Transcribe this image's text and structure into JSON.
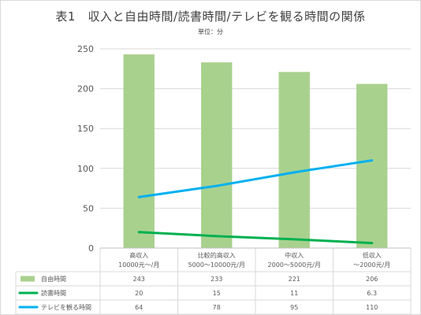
{
  "chart_data": {
    "type": "bar",
    "title": "表1　収入と自由時間/読書時間/テレビを観る時間の関係",
    "subtitle": "単位：分",
    "ylim": [
      0,
      250
    ],
    "yticks": [
      0,
      50,
      100,
      150,
      200,
      250
    ],
    "grid": true,
    "legend": "table-bottom",
    "categories": [
      [
        "高収入",
        "10000元～/月"
      ],
      [
        "比較的高収入",
        "5000～10000元/月"
      ],
      [
        "中収入",
        "2000～5000元/月"
      ],
      [
        "低収入",
        "～2000元/月"
      ]
    ],
    "series": [
      {
        "name": "自由時間",
        "kind": "bar",
        "color": "#a9d18e",
        "values": [
          243,
          233,
          221,
          206
        ],
        "labels": [
          "243",
          "233",
          "221",
          "206"
        ]
      },
      {
        "name": "読書時間",
        "kind": "line",
        "color": "#00b050",
        "values": [
          20,
          15,
          11,
          6.3
        ],
        "labels": [
          "20",
          "15",
          "11",
          "6.3"
        ]
      },
      {
        "name": "テレビを観る時間",
        "kind": "line",
        "color": "#00b0f0",
        "values": [
          64,
          78,
          95,
          110
        ],
        "labels": [
          "64",
          "78",
          "95",
          "110"
        ]
      }
    ]
  }
}
